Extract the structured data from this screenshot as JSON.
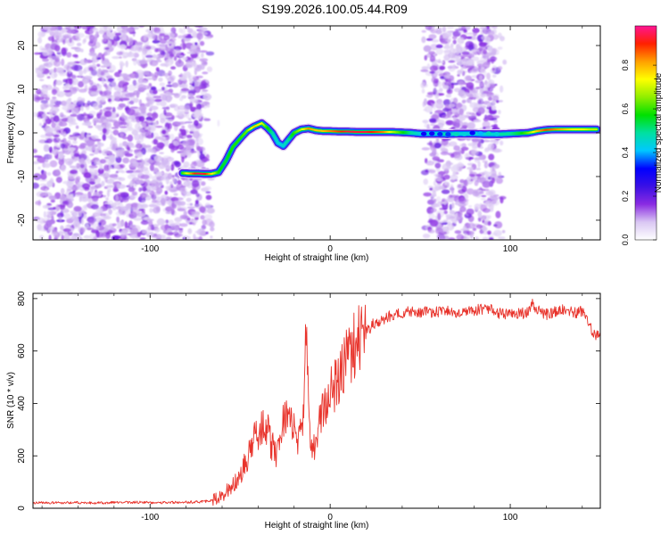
{
  "figure": {
    "title": "S199.2026.100.05.44.R09"
  },
  "colorbar": {
    "label": "Normalized spectral amplitude",
    "ticks": [
      "0.0",
      "0.2",
      "0.4",
      "0.6",
      "0.8"
    ],
    "stops": [
      "#ffffff",
      "#d9c7f3",
      "#8a2be2",
      "#3a10e5",
      "#0000ff",
      "#00c8ff",
      "#00e0a0",
      "#00e000",
      "#90ee00",
      "#ffff00",
      "#ffa000",
      "#ff2000",
      "#ff1493"
    ]
  },
  "chart_data": [
    {
      "type": "heatmap",
      "xlabel": "Height of straight line (km)",
      "ylabel": "Frequency (Hz)",
      "xlim": [
        -165,
        150
      ],
      "ylim": [
        -24.5,
        24.5
      ],
      "xticks": [
        -100,
        0,
        100
      ],
      "xtick_labels": [
        "-100",
        "0",
        "100"
      ],
      "yticks": [
        -20,
        -10,
        0,
        10,
        20
      ],
      "ytick_labels": [
        "-20",
        "-10",
        "0",
        "10",
        "20"
      ],
      "ridge": {
        "x": [
          -82,
          -78,
          -74,
          -70,
          -66,
          -62,
          -58,
          -54,
          -50,
          -46,
          -42,
          -38,
          -35,
          -32,
          -29,
          -26,
          -23,
          -20,
          -16,
          -12,
          -8,
          -4,
          0,
          5,
          10,
          15,
          20,
          25,
          30,
          35,
          40,
          45,
          50,
          55,
          60,
          65,
          70,
          75,
          80,
          85,
          90,
          95,
          100,
          105,
          110,
          115,
          120,
          125,
          130,
          135,
          140,
          145,
          148
        ],
        "y": [
          -9.2,
          -9.3,
          -9.3,
          -9.4,
          -9.4,
          -9,
          -6.5,
          -3.2,
          -1.3,
          0.5,
          1.5,
          2.2,
          1.2,
          -0.1,
          -2.3,
          -3,
          -1.5,
          0,
          0.8,
          1,
          0.6,
          0.4,
          0.4,
          0.3,
          0.3,
          0.2,
          0.2,
          0.2,
          0.2,
          0.2,
          0.1,
          0,
          -0.2,
          -0.2,
          -0.2,
          -0.3,
          -0.2,
          -0.2,
          -0.2,
          -0.3,
          -0.3,
          -0.3,
          -0.2,
          -0.1,
          0,
          0.4,
          0.7,
          0.8,
          0.8,
          0.8,
          0.8,
          0.8,
          0.8
        ],
        "amplitude": [
          0.6,
          0.8,
          0.95,
          0.95,
          0.8,
          0.6,
          0.55,
          0.6,
          0.6,
          0.65,
          0.8,
          0.75,
          0.6,
          0.5,
          0.45,
          0.45,
          0.5,
          0.6,
          0.7,
          0.85,
          0.8,
          0.8,
          0.85,
          0.9,
          0.95,
          0.95,
          0.95,
          0.9,
          0.85,
          0.7,
          0.6,
          0.5,
          0.45,
          0.45,
          0.45,
          0.5,
          0.45,
          0.45,
          0.45,
          0.45,
          0.45,
          0.5,
          0.5,
          0.55,
          0.65,
          0.8,
          0.9,
          0.85,
          0.8,
          0.75,
          0.75,
          0.7,
          0.7
        ]
      },
      "noise_regions": [
        {
          "x": [
            -165,
            -65
          ],
          "y": [
            -24.5,
            24.5
          ],
          "level": 0.12
        },
        {
          "x": [
            50,
            97
          ],
          "y": [
            -24.5,
            24.5
          ],
          "level": 0.08
        }
      ]
    },
    {
      "type": "line",
      "xlabel": "Height of straight line (km)",
      "ylabel": "SNR (10 * v/v)",
      "xlim": [
        -165,
        150
      ],
      "ylim": [
        0,
        820
      ],
      "xticks": [
        -100,
        0,
        100
      ],
      "xtick_labels": [
        "-100",
        "0",
        "100"
      ],
      "yticks": [
        0,
        200,
        400,
        600,
        800
      ],
      "ytick_labels": [
        "0",
        "200",
        "400",
        "600",
        "800"
      ],
      "color": "#e8332b",
      "x": [
        -165,
        -150,
        -140,
        -130,
        -120,
        -110,
        -100,
        -90,
        -80,
        -70,
        -65,
        -60,
        -56,
        -52,
        -48,
        -45,
        -42,
        -39,
        -36,
        -33,
        -30,
        -27,
        -24,
        -21,
        -18,
        -15,
        -13,
        -12,
        -10,
        -8,
        -5,
        -2,
        0,
        3,
        6,
        9,
        12,
        15,
        18,
        21,
        25,
        30,
        35,
        40,
        45,
        50,
        55,
        60,
        65,
        70,
        75,
        80,
        85,
        90,
        95,
        100,
        105,
        110,
        112,
        115,
        120,
        125,
        130,
        135,
        140,
        143,
        146,
        150
      ],
      "y": [
        20,
        21,
        22,
        20,
        22,
        23,
        22,
        22,
        23,
        25,
        32,
        45,
        75,
        105,
        155,
        205,
        265,
        300,
        330,
        250,
        210,
        300,
        380,
        310,
        250,
        350,
        720,
        360,
        190,
        275,
        345,
        400,
        440,
        470,
        520,
        575,
        600,
        640,
        660,
        680,
        710,
        725,
        740,
        745,
        750,
        745,
        750,
        748,
        752,
        745,
        750,
        755,
        760,
        760,
        740,
        740,
        745,
        745,
        785,
        760,
        740,
        750,
        760,
        745,
        750,
        710,
        670,
        650
      ]
    }
  ]
}
